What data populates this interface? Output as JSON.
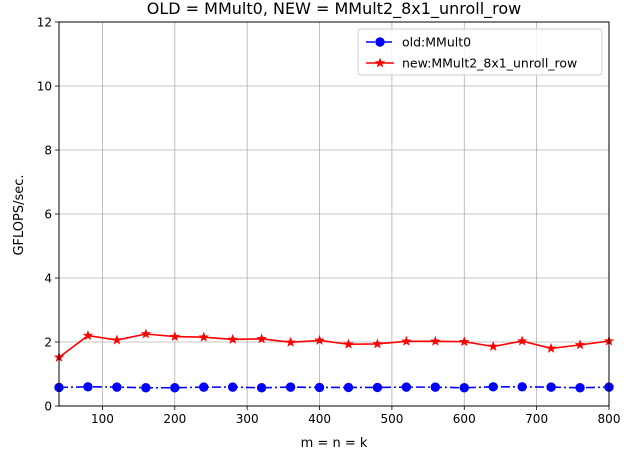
{
  "chart_data": {
    "type": "line",
    "title": "OLD = MMult0, NEW = MMult2_8x1_unroll_row",
    "xlabel": "m = n = k",
    "ylabel": "GFLOPS/sec.",
    "xlim": [
      40,
      800
    ],
    "ylim": [
      0,
      12
    ],
    "xticks": [
      100,
      200,
      300,
      400,
      500,
      600,
      700,
      800
    ],
    "yticks": [
      0,
      2,
      4,
      6,
      8,
      10,
      12
    ],
    "grid": true,
    "legend_position": "top-right",
    "x": [
      40,
      80,
      120,
      160,
      200,
      240,
      280,
      320,
      360,
      400,
      440,
      480,
      520,
      560,
      600,
      640,
      680,
      720,
      760,
      800
    ],
    "series": [
      {
        "name": "old:MMult0",
        "color": "#0000ff",
        "line_style": "dash-dot",
        "marker": "circle",
        "values": [
          0.58,
          0.6,
          0.59,
          0.57,
          0.57,
          0.59,
          0.59,
          0.57,
          0.59,
          0.58,
          0.58,
          0.58,
          0.59,
          0.59,
          0.57,
          0.6,
          0.6,
          0.59,
          0.57,
          0.59
        ]
      },
      {
        "name": "new:MMult2_8x1_unroll_row",
        "color": "#ff0000",
        "line_style": "solid",
        "marker": "star",
        "values": [
          1.52,
          2.2,
          2.06,
          2.25,
          2.17,
          2.15,
          2.08,
          2.1,
          1.99,
          2.05,
          1.93,
          1.94,
          2.02,
          2.02,
          2.01,
          1.86,
          2.03,
          1.8,
          1.91,
          2.03
        ]
      }
    ]
  }
}
